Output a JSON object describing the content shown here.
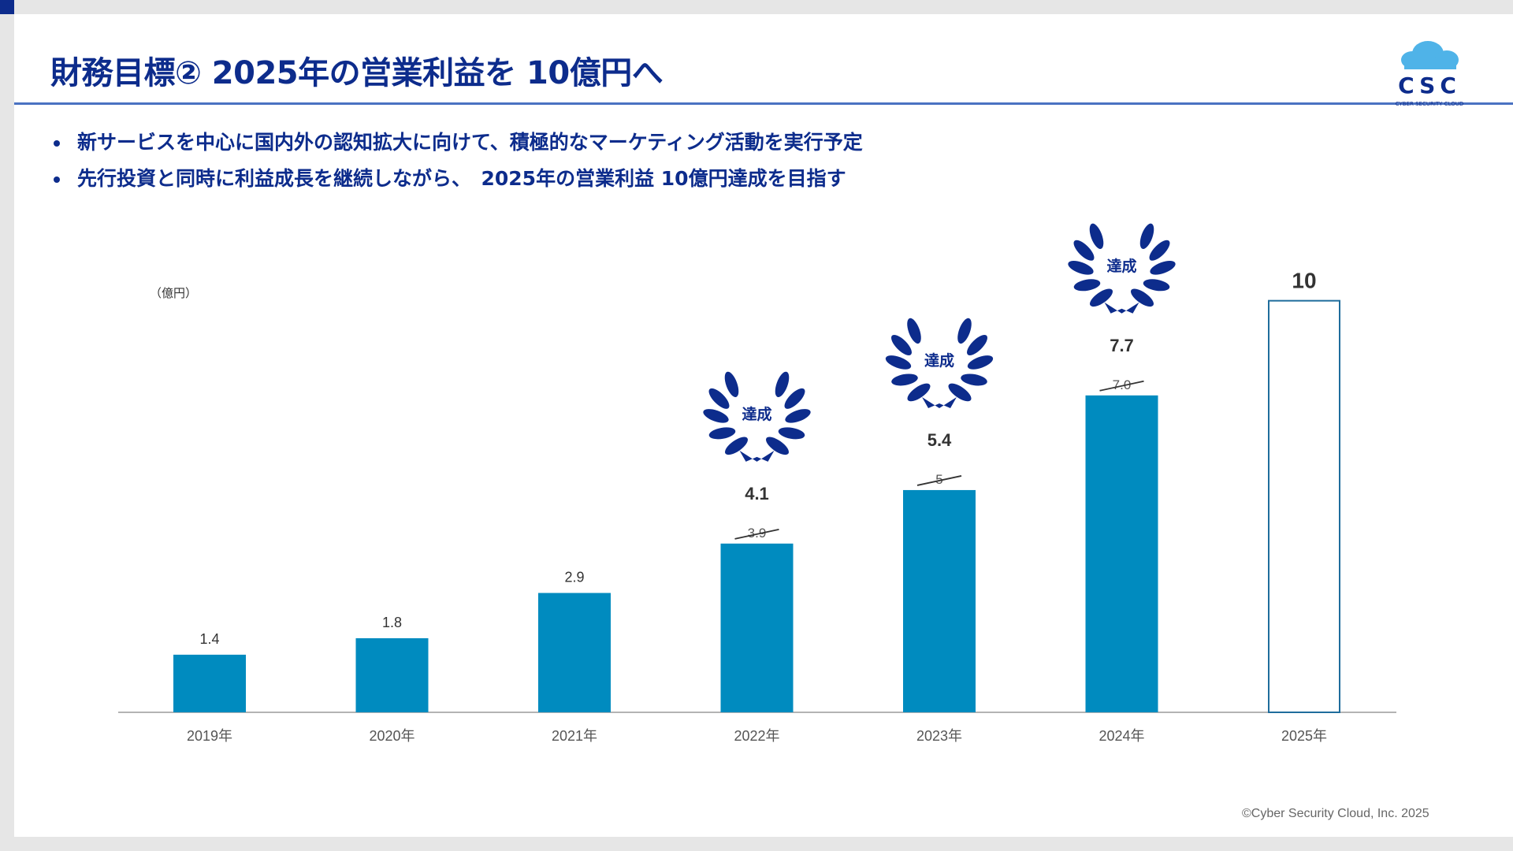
{
  "title": "財務目標② 2025年の営業利益を 10億円へ",
  "bullets": [
    "新サービスを中心に国内外の認知拡大に向けて、積極的なマーケティング活動を実行予定",
    "先行投資と同時に利益成長を継続しながら、　2025年の営業利益 10億円達成を目指す"
  ],
  "logo": {
    "text": "CSC",
    "subtext": "CYBER SECURITY CLOUD",
    "icon": "cloud-icon"
  },
  "footer": "©Cyber Security Cloud, Inc. 2025",
  "colors": {
    "navy": "#0d2c8c",
    "bar": "#008bbf",
    "target_bar_outline": "#1f6d9c",
    "rule": "#4a72c2",
    "logo_cloud": "#4fb3e8"
  },
  "chart_data": {
    "type": "bar",
    "unit_label": "（億円）",
    "categories": [
      "2019年",
      "2020年",
      "2021年",
      "2022年",
      "2023年",
      "2024年",
      "2025年"
    ],
    "values": [
      1.4,
      1.8,
      2.9,
      4.1,
      5.4,
      7.7,
      10
    ],
    "value_labels": [
      "1.4",
      "1.8",
      "2.9",
      "4.1",
      "5.4",
      "7.7",
      "10"
    ],
    "plan_values": [
      null,
      null,
      null,
      3.9,
      5,
      7.0,
      null
    ],
    "plan_labels": [
      "",
      "",
      "",
      "3.9",
      "5",
      "7.0",
      ""
    ],
    "achieved": [
      false,
      false,
      false,
      true,
      true,
      true,
      false
    ],
    "achieved_label": "達成",
    "target_year_index": 6,
    "ylim": [
      0,
      10.3
    ],
    "grid": false,
    "xlabel": "",
    "ylabel": ""
  }
}
